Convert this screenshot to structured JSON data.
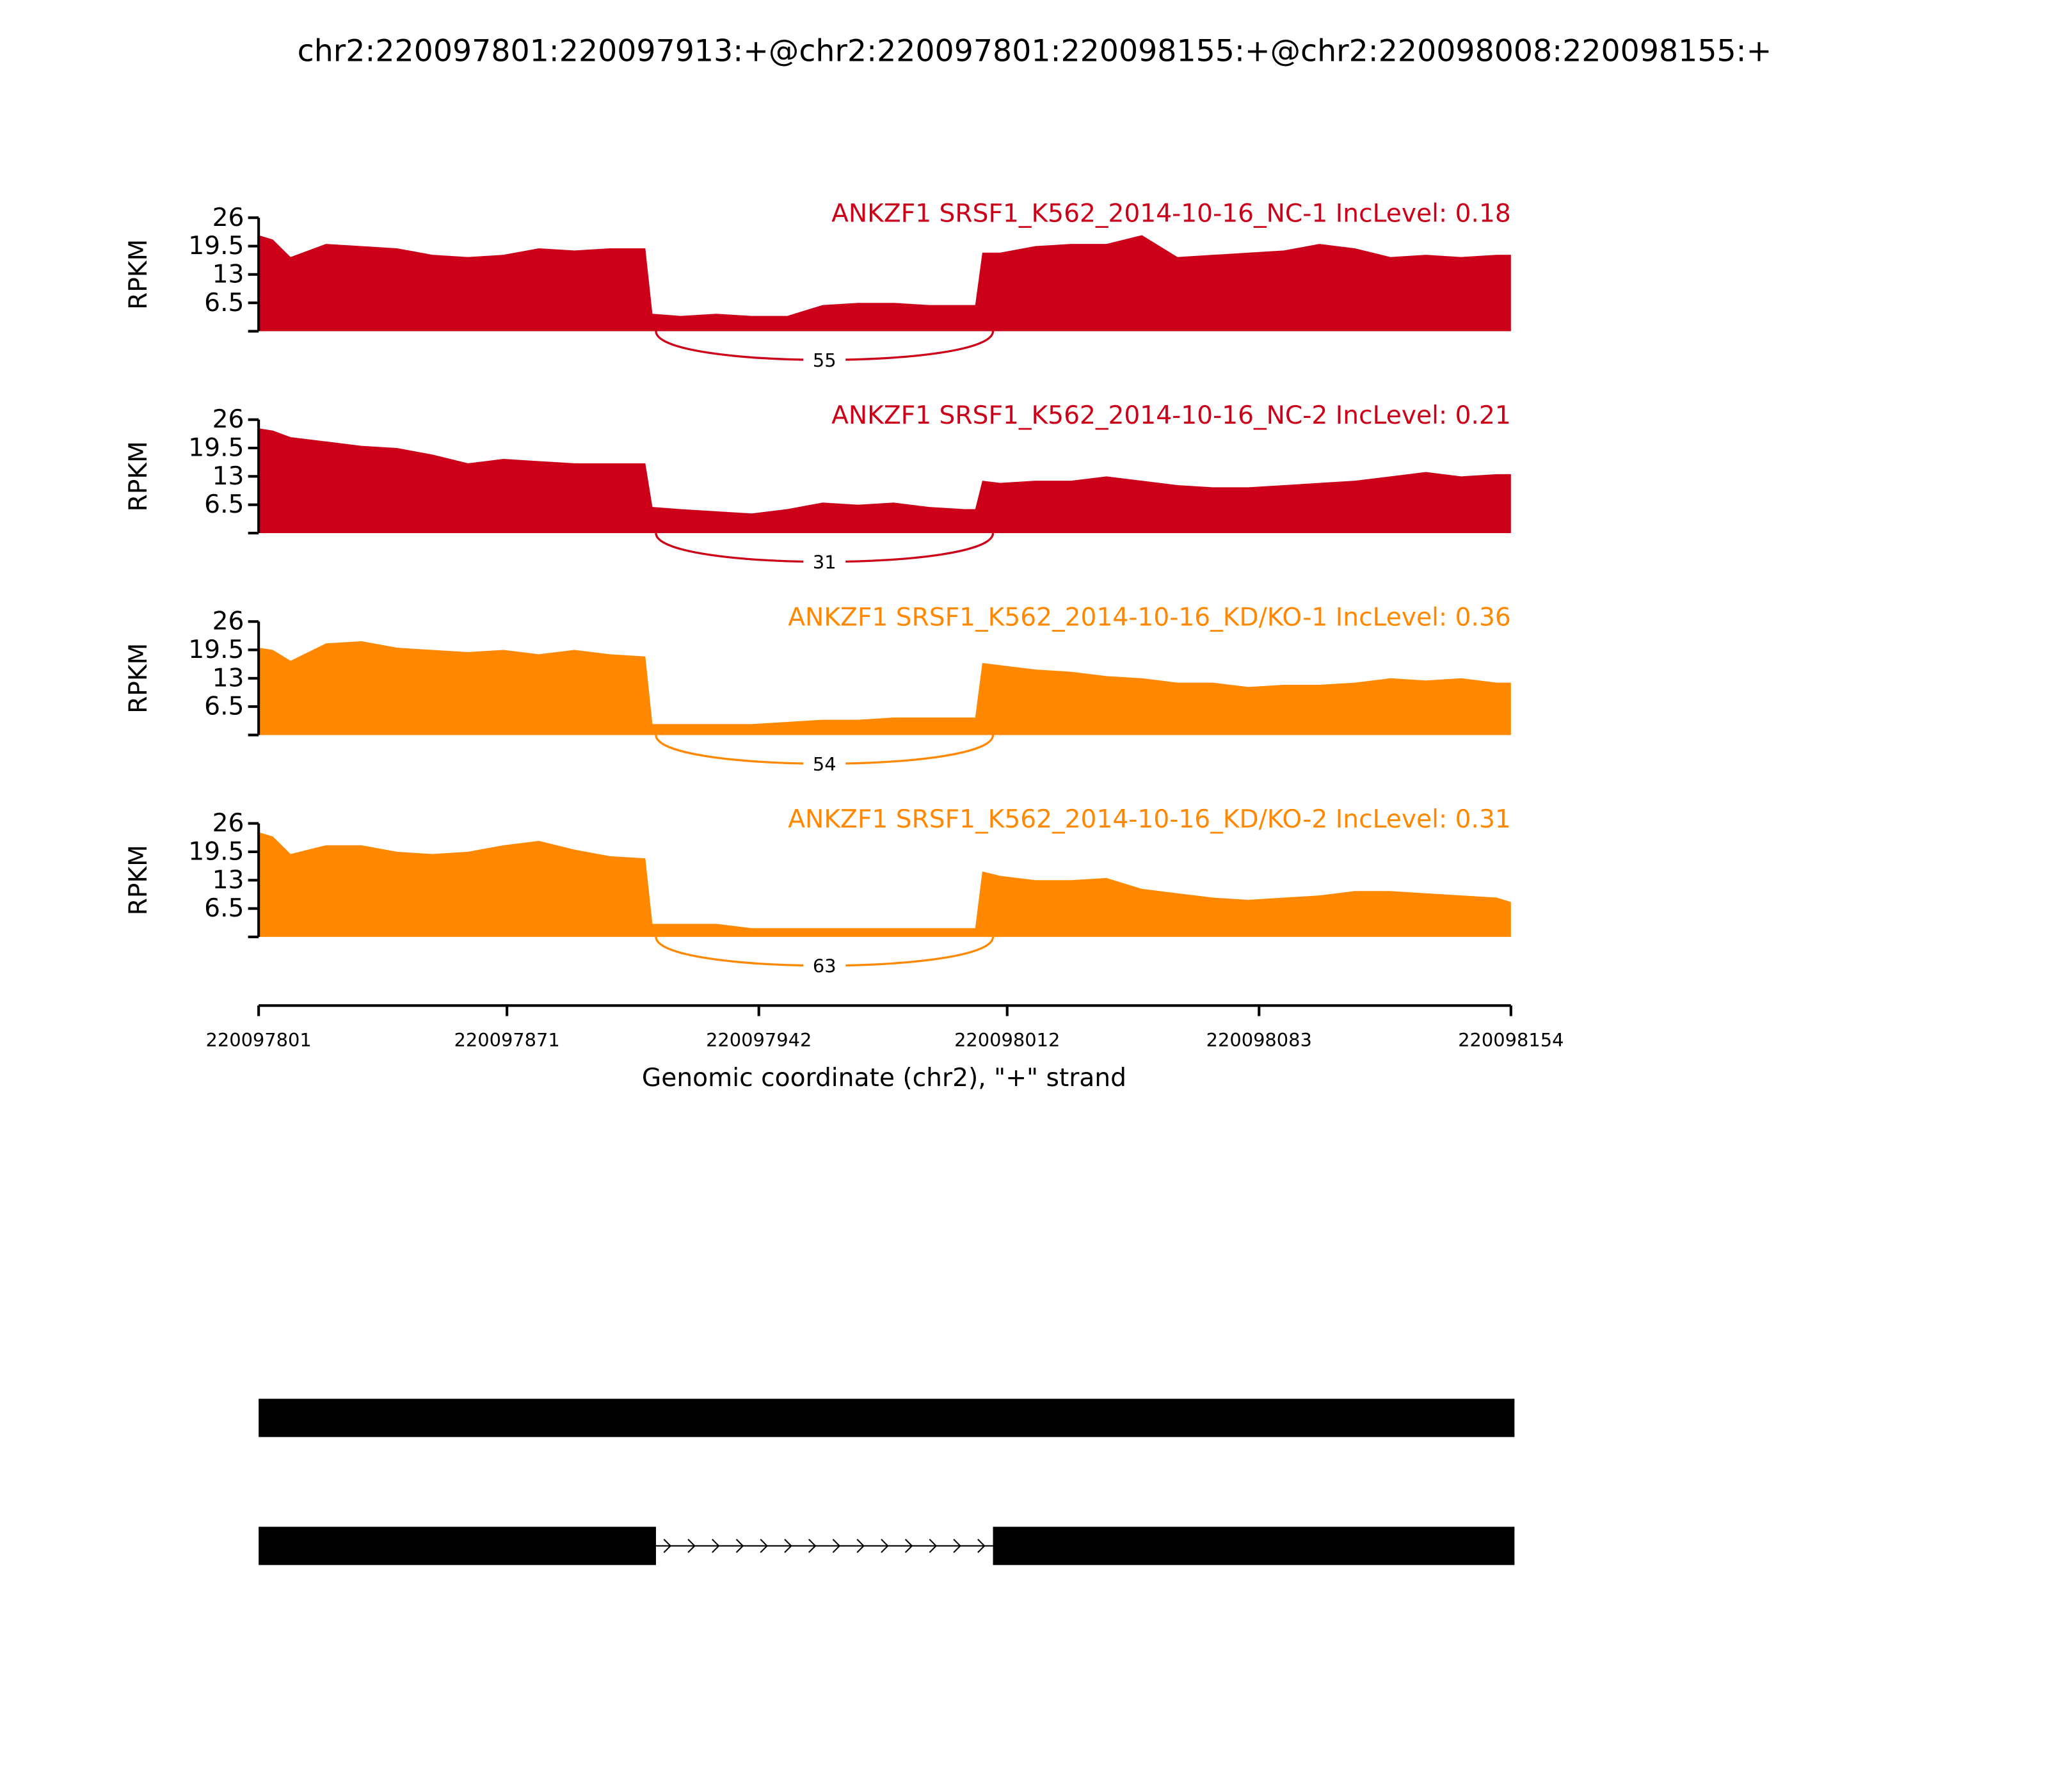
{
  "chart_data": {
    "type": "sashimi",
    "title": "chr2:220097801:220097913:+@chr2:220097801:220098155:+@chr2:220098008:220098155:+",
    "xlabel": "Genomic coordinate (chr2), \"+\" strand",
    "xlim": [
      220097801,
      220098154
    ],
    "xticks": [
      220097801,
      220097871,
      220097942,
      220098012,
      220098083,
      220098154
    ],
    "x": [
      220097801,
      220097805,
      220097810,
      220097820,
      220097830,
      220097840,
      220097850,
      220097860,
      220097870,
      220097880,
      220097890,
      220097900,
      220097910,
      220097912,
      220097920,
      220097930,
      220097940,
      220097950,
      220097960,
      220097970,
      220097980,
      220097990,
      220098000,
      220098003,
      220098005,
      220098010,
      220098020,
      220098030,
      220098040,
      220098050,
      220098060,
      220098070,
      220098080,
      220098090,
      220098100,
      220098110,
      220098120,
      220098130,
      220098140,
      220098150,
      220098154
    ],
    "panels": [
      {
        "label": "ANKZF1 SRSF1_K562_2014-10-16_NC-1 IncLevel: 0.18",
        "color": "#cc0018",
        "ylabel": "RPKM",
        "ylim": [
          0,
          26
        ],
        "yticks": [
          6.5,
          13,
          19.5,
          26
        ],
        "values": [
          22,
          21,
          17,
          20,
          19.5,
          19,
          17.5,
          17,
          17.5,
          19,
          18.5,
          19,
          19,
          4,
          3.5,
          4,
          3.5,
          3.5,
          6,
          6.5,
          6.5,
          6,
          6,
          6,
          18,
          18,
          19.5,
          20,
          20,
          22,
          17,
          17.5,
          18,
          18.5,
          20,
          19,
          17,
          17.5,
          17,
          17.5,
          17.5
        ],
        "junction": {
          "start": 220097913,
          "end": 220098008,
          "count": 55
        }
      },
      {
        "label": "ANKZF1 SRSF1_K562_2014-10-16_NC-2 IncLevel: 0.21",
        "color": "#cc0018",
        "ylabel": "RPKM",
        "ylim": [
          0,
          26
        ],
        "yticks": [
          6.5,
          13,
          19.5,
          26
        ],
        "values": [
          24,
          23.5,
          22,
          21,
          20,
          19.5,
          18,
          16,
          17,
          16.5,
          16,
          16,
          16,
          6,
          5.5,
          5,
          4.5,
          5.5,
          7,
          6.5,
          7,
          6,
          5.5,
          5.5,
          12,
          11.5,
          12,
          12,
          13,
          12,
          11,
          10.5,
          10.5,
          11,
          11.5,
          12,
          13,
          14,
          13,
          13.5,
          13.5
        ],
        "junction": {
          "start": 220097913,
          "end": 220098008,
          "count": 31
        }
      },
      {
        "label": "ANKZF1 SRSF1_K562_2014-10-16_KD/KO-1 IncLevel: 0.36",
        "color": "#ff8800",
        "ylabel": "RPKM",
        "ylim": [
          0,
          26
        ],
        "yticks": [
          6.5,
          13,
          19.5,
          26
        ],
        "values": [
          20,
          19.5,
          17,
          21,
          21.5,
          20,
          19.5,
          19,
          19.5,
          18.5,
          19.5,
          18.5,
          18,
          2.5,
          2.5,
          2.5,
          2.5,
          3,
          3.5,
          3.5,
          4,
          4,
          4,
          4,
          16.5,
          16,
          15,
          14.5,
          13.5,
          13,
          12,
          12,
          11,
          11.5,
          11.5,
          12,
          13,
          12.5,
          13,
          12,
          12
        ],
        "junction": {
          "start": 220097913,
          "end": 220098008,
          "count": 54
        }
      },
      {
        "label": "ANKZF1 SRSF1_K562_2014-10-16_KD/KO-2 IncLevel: 0.31",
        "color": "#ff8800",
        "ylabel": "RPKM",
        "ylim": [
          0,
          26
        ],
        "yticks": [
          6.5,
          13,
          19.5,
          26
        ],
        "values": [
          24,
          23,
          19,
          21,
          21,
          19.5,
          19,
          19.5,
          21,
          22,
          20,
          18.5,
          18,
          3,
          3,
          3,
          2,
          2,
          2,
          2,
          2,
          2,
          2,
          2,
          15,
          14,
          13,
          13,
          13.5,
          11,
          10,
          9,
          8.5,
          9,
          9.5,
          10.5,
          10.5,
          10,
          9.5,
          9,
          8
        ],
        "junction": {
          "start": 220097913,
          "end": 220098008,
          "count": 63
        }
      }
    ],
    "transcripts": [
      {
        "exons": [
          [
            220097801,
            220098155
          ]
        ]
      },
      {
        "exons": [
          [
            220097801,
            220097913
          ],
          [
            220098008,
            220098155
          ]
        ]
      }
    ]
  }
}
